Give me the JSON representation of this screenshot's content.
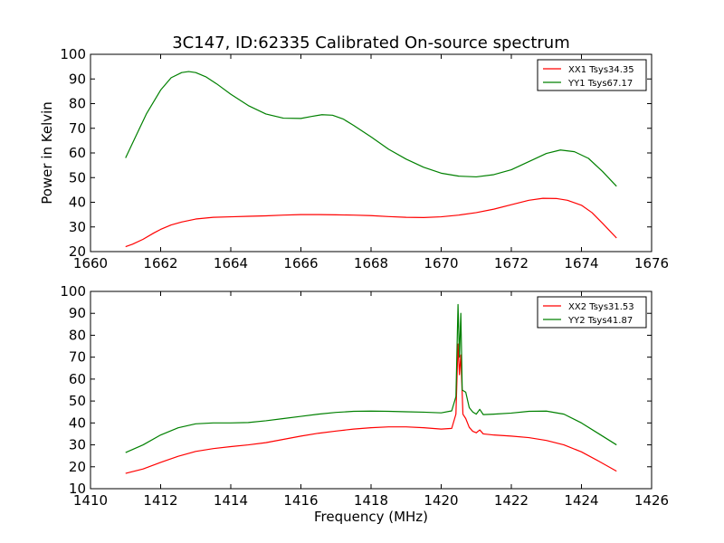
{
  "figure": {
    "title": "3C147, ID:62335 Calibrated On-source spectrum",
    "ylabel": "Power in Kelvin",
    "xlabel": "Frequency (MHz)"
  },
  "chart_data": [
    {
      "type": "line",
      "title": "3C147, ID:62335 Calibrated On-source spectrum",
      "xlabel": "",
      "ylabel": "Power in Kelvin",
      "xlim": [
        1660,
        1676
      ],
      "ylim": [
        20,
        100
      ],
      "xticks": [
        1660,
        1662,
        1664,
        1666,
        1668,
        1670,
        1672,
        1674,
        1676
      ],
      "yticks": [
        20,
        30,
        40,
        50,
        60,
        70,
        80,
        90,
        100
      ],
      "grid": false,
      "legend_position": "top-right",
      "series": [
        {
          "name": "XX1 Tsys34.35",
          "color": "#ff0000",
          "x": [
            1661.0,
            1661.2,
            1661.5,
            1661.8,
            1662.0,
            1662.3,
            1662.6,
            1663.0,
            1663.5,
            1664.0,
            1664.5,
            1665.0,
            1665.5,
            1666.0,
            1666.5,
            1667.0,
            1667.5,
            1668.0,
            1668.5,
            1669.0,
            1669.5,
            1670.0,
            1670.5,
            1671.0,
            1671.5,
            1672.0,
            1672.5,
            1672.9,
            1673.3,
            1673.6,
            1674.0,
            1674.3,
            1674.6,
            1675.0
          ],
          "y": [
            22.0,
            23.0,
            25.0,
            27.5,
            29.0,
            30.8,
            32.0,
            33.2,
            33.9,
            34.1,
            34.3,
            34.5,
            34.8,
            35.0,
            35.0,
            34.9,
            34.8,
            34.6,
            34.2,
            33.9,
            33.8,
            34.1,
            34.8,
            35.8,
            37.2,
            39.0,
            40.8,
            41.6,
            41.5,
            40.8,
            38.8,
            35.8,
            31.5,
            25.5
          ]
        },
        {
          "name": "YY1 Tsys67.17",
          "color": "#008000",
          "x": [
            1661.0,
            1661.3,
            1661.6,
            1662.0,
            1662.3,
            1662.6,
            1662.8,
            1663.0,
            1663.3,
            1663.6,
            1664.0,
            1664.5,
            1665.0,
            1665.5,
            1666.0,
            1666.3,
            1666.6,
            1666.9,
            1667.2,
            1667.5,
            1668.0,
            1668.5,
            1669.0,
            1669.5,
            1670.0,
            1670.5,
            1671.0,
            1671.5,
            1672.0,
            1672.5,
            1673.0,
            1673.4,
            1673.8,
            1674.2,
            1674.6,
            1675.0
          ],
          "y": [
            58.0,
            67.0,
            76.0,
            85.5,
            90.5,
            92.6,
            93.0,
            92.6,
            90.8,
            88.0,
            83.8,
            79.2,
            75.8,
            74.1,
            74.0,
            74.8,
            75.5,
            75.3,
            73.8,
            71.2,
            66.5,
            61.5,
            57.5,
            54.2,
            51.8,
            50.6,
            50.3,
            51.2,
            53.2,
            56.5,
            59.8,
            61.2,
            60.5,
            57.8,
            52.5,
            46.5
          ]
        }
      ]
    },
    {
      "type": "line",
      "title": "",
      "xlabel": "Frequency (MHz)",
      "ylabel": "",
      "xlim": [
        1410,
        1426
      ],
      "ylim": [
        10,
        100
      ],
      "xticks": [
        1410,
        1412,
        1414,
        1416,
        1418,
        1420,
        1422,
        1424,
        1426
      ],
      "yticks": [
        10,
        20,
        30,
        40,
        50,
        60,
        70,
        80,
        90,
        100
      ],
      "grid": false,
      "legend_position": "top-right",
      "series": [
        {
          "name": "XX2 Tsys31.53",
          "color": "#ff0000",
          "x": [
            1411.0,
            1411.5,
            1412.0,
            1412.5,
            1413.0,
            1413.5,
            1414.0,
            1414.5,
            1415.0,
            1415.5,
            1416.0,
            1416.5,
            1417.0,
            1417.5,
            1418.0,
            1418.5,
            1419.0,
            1419.5,
            1420.0,
            1420.3,
            1420.42,
            1420.48,
            1420.52,
            1420.56,
            1420.62,
            1420.7,
            1420.8,
            1420.9,
            1421.0,
            1421.1,
            1421.2,
            1421.5,
            1422.0,
            1422.5,
            1423.0,
            1423.5,
            1424.0,
            1424.5,
            1425.0
          ],
          "y": [
            17.0,
            19.0,
            22.0,
            24.8,
            27.0,
            28.3,
            29.2,
            30.0,
            31.0,
            32.5,
            34.0,
            35.3,
            36.3,
            37.2,
            37.8,
            38.2,
            38.2,
            37.8,
            37.2,
            37.5,
            44.0,
            76.0,
            62.0,
            71.0,
            44.0,
            42.0,
            38.0,
            36.2,
            35.5,
            36.8,
            35.0,
            34.5,
            34.0,
            33.3,
            32.0,
            30.0,
            26.8,
            22.5,
            18.0
          ]
        },
        {
          "name": "YY2 Tsys41.87",
          "color": "#008000",
          "x": [
            1411.0,
            1411.5,
            1412.0,
            1412.5,
            1413.0,
            1413.5,
            1414.0,
            1414.5,
            1415.0,
            1415.5,
            1416.0,
            1416.5,
            1417.0,
            1417.5,
            1418.0,
            1418.5,
            1419.0,
            1419.5,
            1420.0,
            1420.3,
            1420.42,
            1420.48,
            1420.52,
            1420.56,
            1420.6,
            1420.7,
            1420.8,
            1420.9,
            1421.0,
            1421.1,
            1421.2,
            1421.5,
            1422.0,
            1422.5,
            1423.0,
            1423.5,
            1424.0,
            1424.5,
            1425.0
          ],
          "y": [
            26.5,
            30.0,
            34.5,
            37.8,
            39.6,
            40.0,
            40.0,
            40.2,
            41.0,
            42.0,
            43.0,
            44.0,
            44.8,
            45.3,
            45.4,
            45.3,
            45.1,
            44.9,
            44.6,
            45.5,
            52.0,
            94.0,
            70.0,
            90.0,
            55.0,
            54.0,
            47.0,
            45.0,
            44.0,
            46.2,
            43.8,
            44.0,
            44.5,
            45.3,
            45.4,
            44.0,
            40.0,
            35.0,
            30.0
          ]
        }
      ]
    }
  ]
}
